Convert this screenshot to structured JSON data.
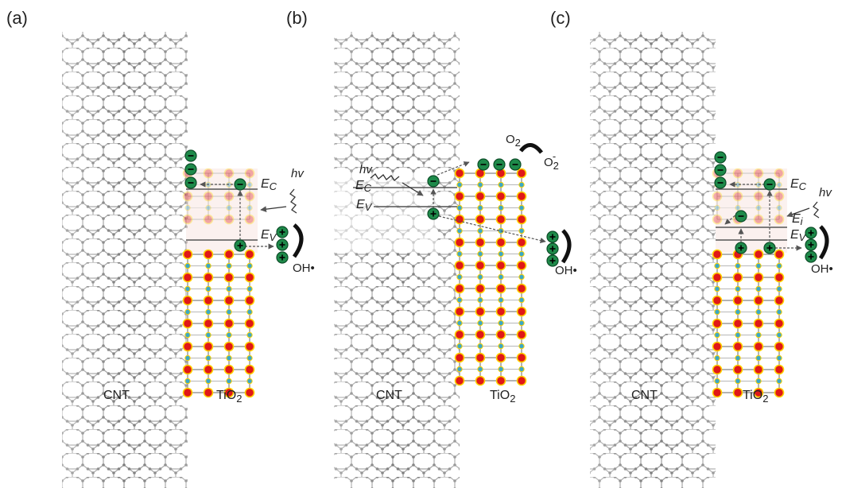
{
  "panels": [
    {
      "id": "a",
      "letter": "(a)",
      "cnt_label": "CNT",
      "tio2_label": "TiO",
      "tio2_sub": "2",
      "ec_label": "E",
      "ec_sub": "C",
      "ev_label": "E",
      "ev_sub": "V",
      "hv_label": "hv",
      "oh_label": "OH•"
    },
    {
      "id": "b",
      "letter": "(b)",
      "cnt_label": "CNT",
      "tio2_label": "TiO",
      "tio2_sub": "2",
      "ec_label": "E",
      "ec_sub": "C",
      "ev_label": "E",
      "ev_sub": "V",
      "hv_label": "hv",
      "oh_label": "OH•",
      "o2_label": "O",
      "o2_sub": "2",
      "o2rad_label": "O",
      "o2rad_sub": "2",
      "o2rad_sup": "-"
    },
    {
      "id": "c",
      "letter": "(c)",
      "cnt_label": "CNT",
      "tio2_label": "TiO",
      "tio2_sub": "2",
      "ec_label": "E",
      "ec_sub": "C",
      "ev_label": "E",
      "ev_sub": "V",
      "ei_label": "E",
      "ei_sub": "i",
      "hv_label": "hv",
      "oh_label": "OH•"
    }
  ],
  "colors": {
    "lattice_line": "#9a9a9a",
    "lattice_atom": "#7d7d7d",
    "o_atom": "#e01818",
    "o_ring": "#ffd200",
    "ti_atom": "#3aa8c8",
    "charge_fill": "#1e8a4a",
    "arrow": "#555555"
  }
}
